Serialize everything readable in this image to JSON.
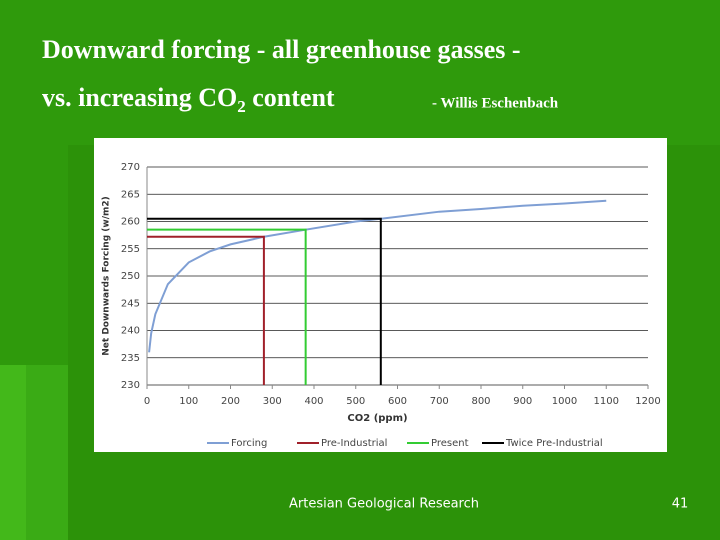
{
  "slide": {
    "title_line1": "Downward forcing  -  all greenhouse gasses  -",
    "title_line2": [
      "vs. increasing CO",
      "2",
      " content"
    ],
    "author": "-  Willis Eschenbach",
    "footer": "Artesian Geological Research",
    "page_number": "41"
  },
  "chart_data": {
    "type": "line",
    "x_label": "CO2 (ppm)",
    "y_label": "Net Downwards Forcing (w/m2)",
    "xlim": [
      0,
      1200
    ],
    "xticks": [
      0,
      100,
      200,
      300,
      400,
      500,
      600,
      700,
      800,
      900,
      1000,
      1100,
      1200
    ],
    "ylim": [
      230,
      270
    ],
    "yticks": [
      230,
      235,
      240,
      245,
      250,
      255,
      260,
      265,
      270
    ],
    "grid": true,
    "legend": "bottom",
    "series": [
      {
        "name": "Forcing",
        "color": "#7f9fd4",
        "x": [
          5,
          10,
          20,
          50,
          100,
          150,
          200,
          280,
          380,
          500,
          560,
          700,
          800,
          900,
          1000,
          1100
        ],
        "values": [
          236,
          239.5,
          243,
          248.5,
          252.5,
          254.5,
          255.8,
          257.2,
          258.5,
          260,
          260.5,
          261.8,
          262.3,
          262.9,
          263.3,
          263.8
        ]
      },
      {
        "name": "Pre-Industrial",
        "color": "#a0202a",
        "x": [
          0,
          280,
          280
        ],
        "values": [
          257.2,
          257.2,
          230
        ]
      },
      {
        "name": "Present",
        "color": "#33cc33",
        "x": [
          0,
          380,
          380
        ],
        "values": [
          258.5,
          258.5,
          230
        ]
      },
      {
        "name": "Twice Pre-Industrial",
        "color": "#000000",
        "x": [
          0,
          560,
          560
        ],
        "values": [
          260.5,
          260.5,
          230
        ]
      }
    ]
  }
}
